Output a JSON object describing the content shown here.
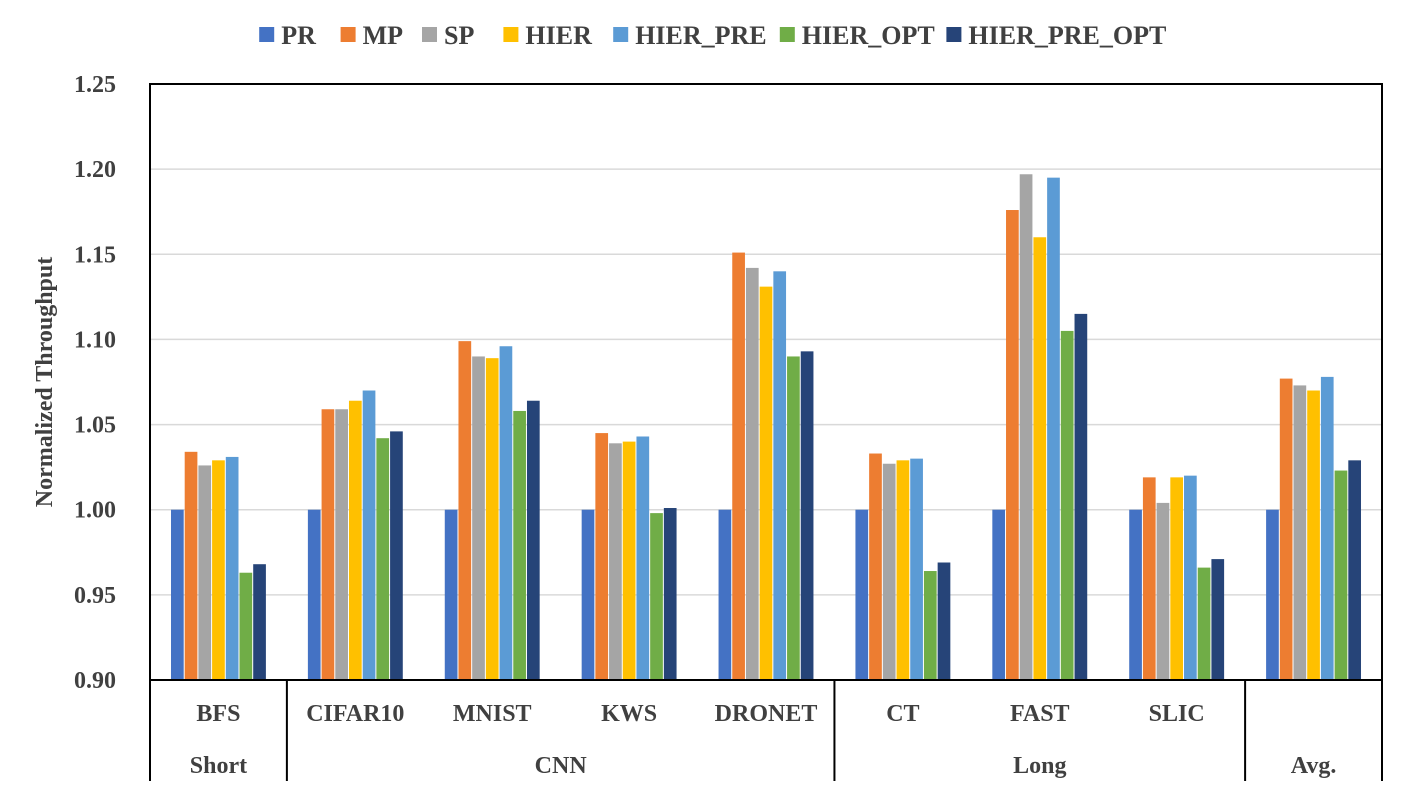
{
  "chart_data": {
    "type": "bar",
    "title": "",
    "xlabel": "",
    "ylabel": "Normalized Throughput",
    "ylim": [
      0.9,
      1.25
    ],
    "yticks": [
      "0.90",
      "0.95",
      "1.00",
      "1.05",
      "1.10",
      "1.15",
      "1.20",
      "1.25"
    ],
    "grid": true,
    "legend_position": "top",
    "categories": [
      "BFS",
      "CIFAR10",
      "MNIST",
      "KWS",
      "DRONET",
      "CT",
      "FAST",
      "SLIC",
      ""
    ],
    "groups": [
      {
        "label": "Short",
        "span": 1
      },
      {
        "label": "CNN",
        "span": 4
      },
      {
        "label": "Long",
        "span": 3
      },
      {
        "label": "Avg.",
        "span": 1
      }
    ],
    "series": [
      {
        "name": "PR",
        "color": "#4472C4",
        "values": [
          1.0,
          1.0,
          1.0,
          1.0,
          1.0,
          1.0,
          1.0,
          1.0,
          1.0
        ]
      },
      {
        "name": "MP",
        "color": "#ED7D31",
        "values": [
          1.034,
          1.059,
          1.099,
          1.045,
          1.151,
          1.033,
          1.176,
          1.019,
          1.077
        ]
      },
      {
        "name": "SP",
        "color": "#A5A5A5",
        "values": [
          1.026,
          1.059,
          1.09,
          1.039,
          1.142,
          1.027,
          1.197,
          1.004,
          1.073
        ]
      },
      {
        "name": "HIER",
        "color": "#FFC000",
        "values": [
          1.029,
          1.064,
          1.089,
          1.04,
          1.131,
          1.029,
          1.16,
          1.019,
          1.07
        ]
      },
      {
        "name": "HIER_PRE",
        "color": "#5B9BD5",
        "values": [
          1.031,
          1.07,
          1.096,
          1.043,
          1.14,
          1.03,
          1.195,
          1.02,
          1.078
        ]
      },
      {
        "name": "HIER_OPT",
        "color": "#70AD47",
        "values": [
          0.963,
          1.042,
          1.058,
          0.998,
          1.09,
          0.964,
          1.105,
          0.966,
          1.023
        ]
      },
      {
        "name": "HIER_PRE_OPT",
        "color": "#264478",
        "values": [
          0.968,
          1.046,
          1.064,
          1.001,
          1.093,
          0.969,
          1.115,
          0.971,
          1.029
        ]
      }
    ]
  }
}
